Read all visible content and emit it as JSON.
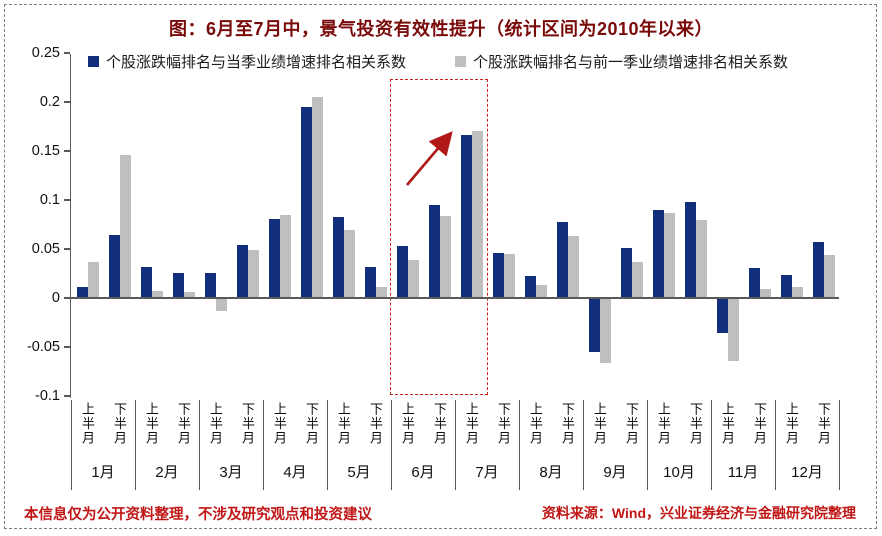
{
  "title": "图：6月至7月中，景气投资有效性提升（统计区间为2010年以来）",
  "legend": [
    {
      "label": "个股涨跌幅排名与当季业绩增速排名相关系数",
      "color": "#122f7b"
    },
    {
      "label": "个股涨跌幅排名与前一季业绩增速排名相关系数",
      "color": "#bfbfbf"
    }
  ],
  "footer": {
    "left": "本信息仅为公开资料整理，不涉及研究观点和投资建议",
    "right": "资料来源：Wind，兴业证券经济与金融研究院整理"
  },
  "colors": {
    "series_current": "#122f7b",
    "series_previous": "#bfbfbf",
    "title_text": "#7a0a0a",
    "footer_text": "#c01616",
    "highlight_box": "#d02020",
    "arrow": "#b01818",
    "axis": "#595959"
  },
  "chart_data": {
    "type": "bar",
    "title": "图：6月至7月中，景气投资有效性提升（统计区间为2010年以来）",
    "xlabel": "",
    "ylabel": "",
    "ylim": [
      -0.1,
      0.25
    ],
    "grid": false,
    "legend_position": "top",
    "yticks": [
      "0.25",
      "0.2",
      "0.15",
      "0.1",
      "0.05",
      "0",
      "-0.05",
      "-0.1"
    ],
    "months": [
      "1月",
      "2月",
      "3月",
      "4月",
      "5月",
      "6月",
      "7月",
      "8月",
      "9月",
      "10月",
      "11月",
      "12月"
    ],
    "half_labels": [
      "上半月",
      "下半月"
    ],
    "categories": [
      "1月上半月",
      "1月下半月",
      "2月上半月",
      "2月下半月",
      "3月上半月",
      "3月下半月",
      "4月上半月",
      "4月下半月",
      "5月上半月",
      "5月下半月",
      "6月上半月",
      "6月下半月",
      "7月上半月",
      "7月下半月",
      "8月上半月",
      "8月下半月",
      "9月上半月",
      "9月下半月",
      "10月上半月",
      "10月下半月",
      "11月上半月",
      "11月下半月",
      "12月上半月",
      "12月下半月"
    ],
    "series": [
      {
        "name": "个股涨跌幅排名与当季业绩增速排名相关系数",
        "color": "#122f7b",
        "values": [
          0.011,
          0.064,
          0.032,
          0.026,
          0.026,
          0.054,
          0.081,
          0.195,
          0.083,
          0.032,
          0.053,
          0.095,
          0.166,
          0.046,
          0.022,
          0.078,
          -0.054,
          0.051,
          0.09,
          0.098,
          -0.035,
          0.031,
          0.023,
          0.057
        ]
      },
      {
        "name": "个股涨跌幅排名与前一季业绩增速排名相关系数",
        "color": "#bfbfbf",
        "values": [
          0.037,
          0.146,
          0.007,
          0.006,
          -0.012,
          0.049,
          0.085,
          0.205,
          0.069,
          0.011,
          0.039,
          0.084,
          0.17,
          0.045,
          0.013,
          0.063,
          -0.065,
          0.037,
          0.087,
          0.08,
          -0.063,
          0.009,
          0.011,
          0.044
        ]
      }
    ],
    "annotations": {
      "highlight_box_categories": [
        "6月上半月",
        "6月下半月",
        "7月上半月"
      ],
      "arrow_direction": "up-right"
    }
  }
}
